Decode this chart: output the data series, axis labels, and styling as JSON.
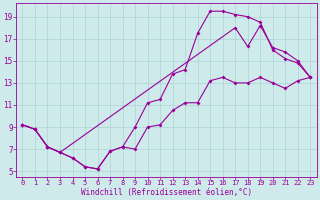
{
  "line1_x": [
    0,
    1,
    2,
    3,
    4,
    5,
    6,
    7,
    8,
    9,
    10,
    11,
    12,
    13,
    14,
    15,
    16,
    17,
    18,
    19,
    20,
    21,
    22,
    23
  ],
  "line1_y": [
    9.2,
    8.8,
    7.2,
    6.7,
    6.2,
    5.4,
    5.2,
    6.8,
    7.2,
    7.0,
    9.0,
    9.2,
    10.5,
    11.2,
    11.2,
    13.2,
    13.5,
    13.0,
    13.0,
    13.5,
    13.0,
    12.5,
    13.2,
    13.5
  ],
  "line2_x": [
    0,
    1,
    2,
    3,
    4,
    5,
    6,
    7,
    8,
    9,
    10,
    11,
    12,
    13,
    14,
    15,
    16,
    17,
    18,
    19,
    20,
    21,
    22,
    23
  ],
  "line2_y": [
    9.2,
    8.8,
    7.2,
    6.7,
    6.2,
    5.4,
    5.2,
    6.8,
    7.2,
    9.0,
    11.2,
    11.5,
    13.8,
    14.2,
    17.5,
    19.5,
    19.5,
    19.2,
    19.0,
    18.5,
    16.0,
    15.2,
    14.8,
    13.5
  ],
  "line3_x": [
    0,
    1,
    2,
    3,
    17,
    18,
    19,
    20,
    21,
    22,
    23
  ],
  "line3_y": [
    9.2,
    8.8,
    7.2,
    6.7,
    18.0,
    16.3,
    18.2,
    16.2,
    15.8,
    15.0,
    13.5
  ],
  "color": "#990099",
  "bg_color": "#ceeaea",
  "grid_color": "#aad4d4",
  "xlabel": "Windchill (Refroidissement éolien,°C)",
  "xlim": [
    -0.5,
    23.5
  ],
  "ylim": [
    4.5,
    20.2
  ],
  "xticks": [
    0,
    1,
    2,
    3,
    4,
    5,
    6,
    7,
    8,
    9,
    10,
    11,
    12,
    13,
    14,
    15,
    16,
    17,
    18,
    19,
    20,
    21,
    22,
    23
  ],
  "yticks": [
    5,
    7,
    9,
    11,
    13,
    15,
    17,
    19
  ],
  "xlabel_fontsize": 5.5,
  "tick_fontsize": 5.0
}
